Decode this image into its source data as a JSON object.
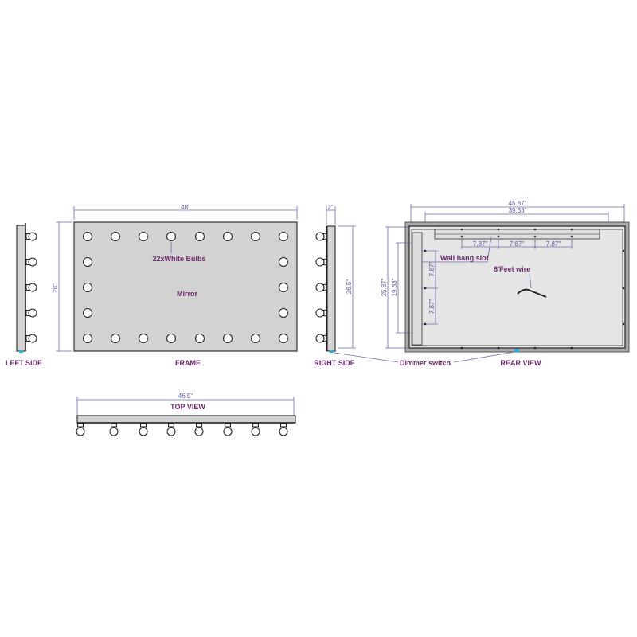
{
  "views": {
    "left_side": {
      "label": "LEFT SIDE"
    },
    "frame": {
      "label": "FRAME",
      "width": "48\"",
      "height": "28\"",
      "bulbs_label": "22xWhite Bulbs",
      "mirror_label": "Mirror"
    },
    "right_side": {
      "label": "RIGHT SIDE",
      "depth": "2\"",
      "height": "26.5\""
    },
    "rear": {
      "label": "REAR VIEW",
      "outer_width": "45.87\"",
      "inner_width": "39.33\"",
      "outer_height": "25.87\"",
      "inner_height": "19.33\"",
      "slot_spacing": [
        "7.87\"",
        "7.87\"",
        "7.87\""
      ],
      "vertical_spacing": [
        "7.87\"",
        "7.87\""
      ],
      "wall_hang_slot": "Wall hang slot",
      "wire": "8'Feet wire",
      "dimmer": "Dimmer switch"
    },
    "top": {
      "label": "TOP VIEW",
      "width": "46.5\""
    }
  },
  "colors": {
    "label": "#6b2a6b",
    "dimension": "#5a5aa0",
    "panel": "#d2d2d2",
    "switch": "#2ab0e0"
  }
}
